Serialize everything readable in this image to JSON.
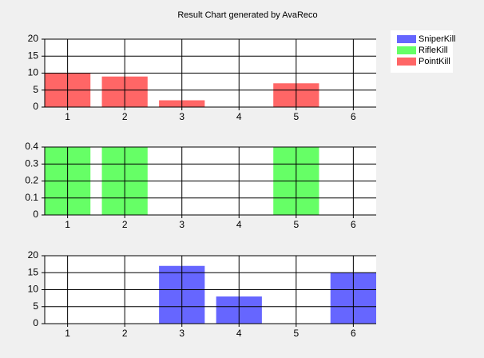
{
  "chart_data": [
    {
      "type": "bar",
      "title": "Result Chart generated by AvaReco",
      "categories": [
        1,
        2,
        3,
        4,
        5,
        6
      ],
      "series": [
        {
          "name": "PointKill",
          "color": "#ff6666",
          "values": [
            10,
            9,
            2,
            0,
            7,
            0
          ]
        }
      ],
      "ylim": [
        0,
        20
      ],
      "yticks": [
        0,
        5,
        10,
        15,
        20
      ],
      "grid": true
    },
    {
      "type": "bar",
      "categories": [
        1,
        2,
        3,
        4,
        5,
        6
      ],
      "series": [
        {
          "name": "RifleKill",
          "color": "#66ff66",
          "values": [
            0.4,
            0.4,
            0,
            0,
            0.4,
            0
          ]
        }
      ],
      "ylim": [
        0,
        0.4
      ],
      "yticks": [
        0,
        0.1,
        0.2,
        0.3,
        0.4
      ],
      "grid": true
    },
    {
      "type": "bar",
      "categories": [
        1,
        2,
        3,
        4,
        5,
        6
      ],
      "series": [
        {
          "name": "SniperKill",
          "color": "#6666ff",
          "values": [
            0,
            0,
            17,
            8,
            0,
            15
          ]
        }
      ],
      "ylim": [
        0,
        20
      ],
      "yticks": [
        0,
        5,
        10,
        15,
        20
      ],
      "grid": true
    }
  ]
}
